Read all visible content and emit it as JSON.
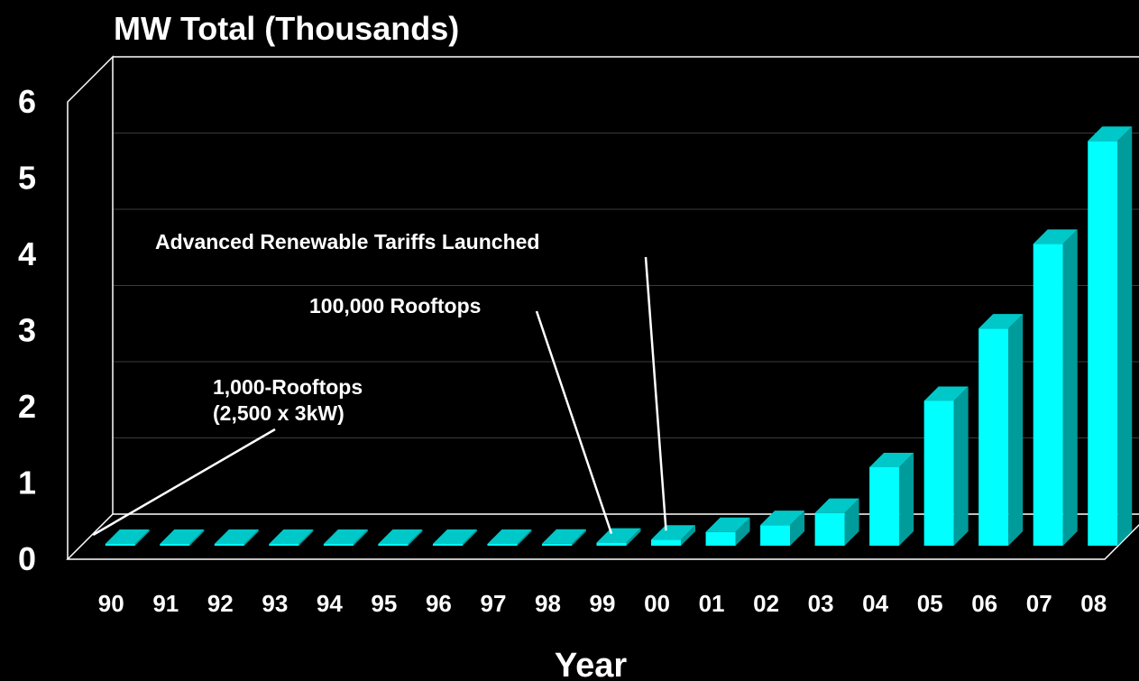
{
  "chart_data": {
    "type": "bar",
    "title": "MW Total (Thousands)",
    "xlabel": "Year",
    "ylabel": "",
    "ylim": [
      0,
      6
    ],
    "yticks": [
      "0",
      "1",
      "2",
      "3",
      "4",
      "5",
      "6"
    ],
    "categories": [
      "90",
      "91",
      "92",
      "93",
      "94",
      "95",
      "96",
      "97",
      "98",
      "99",
      "00",
      "01",
      "02",
      "03",
      "04",
      "05",
      "06",
      "07",
      "08"
    ],
    "values": [
      0.001,
      0.002,
      0.003,
      0.005,
      0.006,
      0.008,
      0.011,
      0.018,
      0.026,
      0.04,
      0.08,
      0.18,
      0.27,
      0.43,
      1.03,
      1.9,
      2.85,
      3.96,
      5.31
    ],
    "grid": true,
    "colors": {
      "bar_front": "#00ffff",
      "bar_side": "#009b9b",
      "bar_top": "#00c8c8",
      "axis": "#ffffff",
      "background": "#000000"
    },
    "annotations": [
      {
        "lines": [
          "1,000-Rooftops",
          "(2,500 x 3kW)"
        ],
        "target_category": "90"
      },
      {
        "lines": [
          "100,000 Rooftops"
        ],
        "target_category": "99"
      },
      {
        "lines": [
          "Advanced Renewable Tariffs Launched"
        ],
        "target_category": "00"
      }
    ]
  }
}
